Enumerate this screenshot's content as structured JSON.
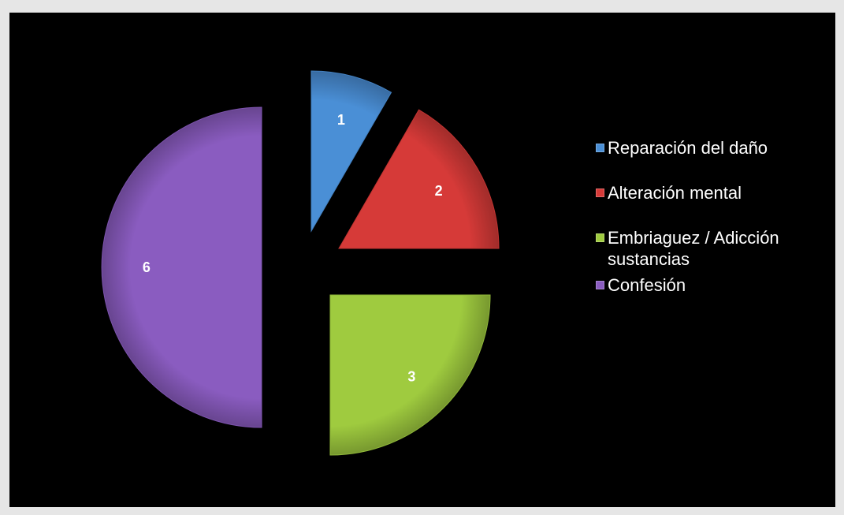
{
  "chart_data": {
    "type": "pie",
    "title": "",
    "exploded": true,
    "categories": [
      "Reparación del daño",
      "Alteración mental",
      "Embriaguez / Adicción sustancias",
      "Confesión"
    ],
    "values": [
      1,
      2,
      3,
      6
    ],
    "data_labels": [
      "1",
      "2",
      "3",
      "6"
    ],
    "colors": [
      "#4a8fd6",
      "#d63a38",
      "#9fcb3f",
      "#8a5cc0"
    ],
    "legend": {
      "placement": "right",
      "items": [
        {
          "label": "Reparación del daño",
          "color": "#4a8fd6"
        },
        {
          "label": "Alteración mental",
          "color": "#d63a38"
        },
        {
          "label": "Embriaguez / Adicción sustancias",
          "color": "#9fcb3f"
        },
        {
          "label": "Confesión",
          "color": "#8a5cc0"
        }
      ]
    }
  }
}
